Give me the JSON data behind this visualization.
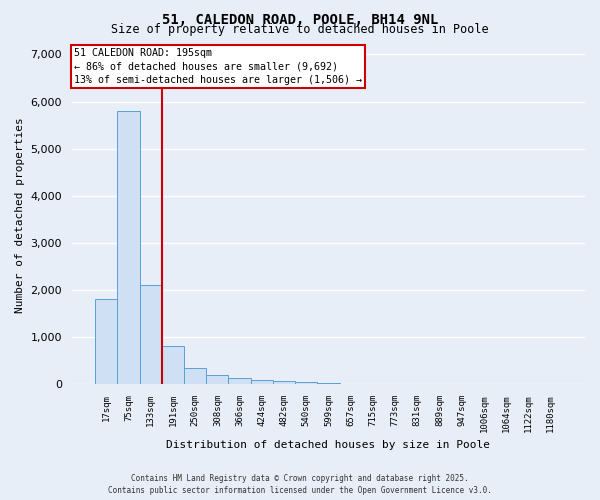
{
  "title_line1": "51, CALEDON ROAD, POOLE, BH14 9NL",
  "title_line2": "Size of property relative to detached houses in Poole",
  "xlabel": "Distribution of detached houses by size in Poole",
  "ylabel": "Number of detached properties",
  "categories": [
    "17sqm",
    "75sqm",
    "133sqm",
    "191sqm",
    "250sqm",
    "308sqm",
    "366sqm",
    "424sqm",
    "482sqm",
    "540sqm",
    "599sqm",
    "657sqm",
    "715sqm",
    "773sqm",
    "831sqm",
    "889sqm",
    "947sqm",
    "1006sqm",
    "1064sqm",
    "1122sqm",
    "1180sqm"
  ],
  "values": [
    1800,
    5800,
    2100,
    820,
    340,
    200,
    130,
    90,
    65,
    50,
    20,
    0,
    0,
    0,
    0,
    0,
    0,
    0,
    0,
    0,
    0
  ],
  "bar_color": "#cfe0f5",
  "bar_edge_color": "#5a9fd4",
  "property_line_color": "#cc0000",
  "property_label": "51 CALEDON ROAD: 195sqm",
  "annotation_line2": "← 86% of detached houses are smaller (9,692)",
  "annotation_line3": "13% of semi-detached houses are larger (1,506) →",
  "annotation_box_color": "#cc0000",
  "ylim": [
    0,
    7200
  ],
  "yticks": [
    0,
    1000,
    2000,
    3000,
    4000,
    5000,
    6000,
    7000
  ],
  "bg_color": "#e8eef8",
  "plot_bg_color": "#e8eef8",
  "grid_color": "#c8d4e8",
  "footer_line1": "Contains HM Land Registry data © Crown copyright and database right 2025.",
  "footer_line2": "Contains public sector information licensed under the Open Government Licence v3.0.",
  "red_line_index": 3
}
